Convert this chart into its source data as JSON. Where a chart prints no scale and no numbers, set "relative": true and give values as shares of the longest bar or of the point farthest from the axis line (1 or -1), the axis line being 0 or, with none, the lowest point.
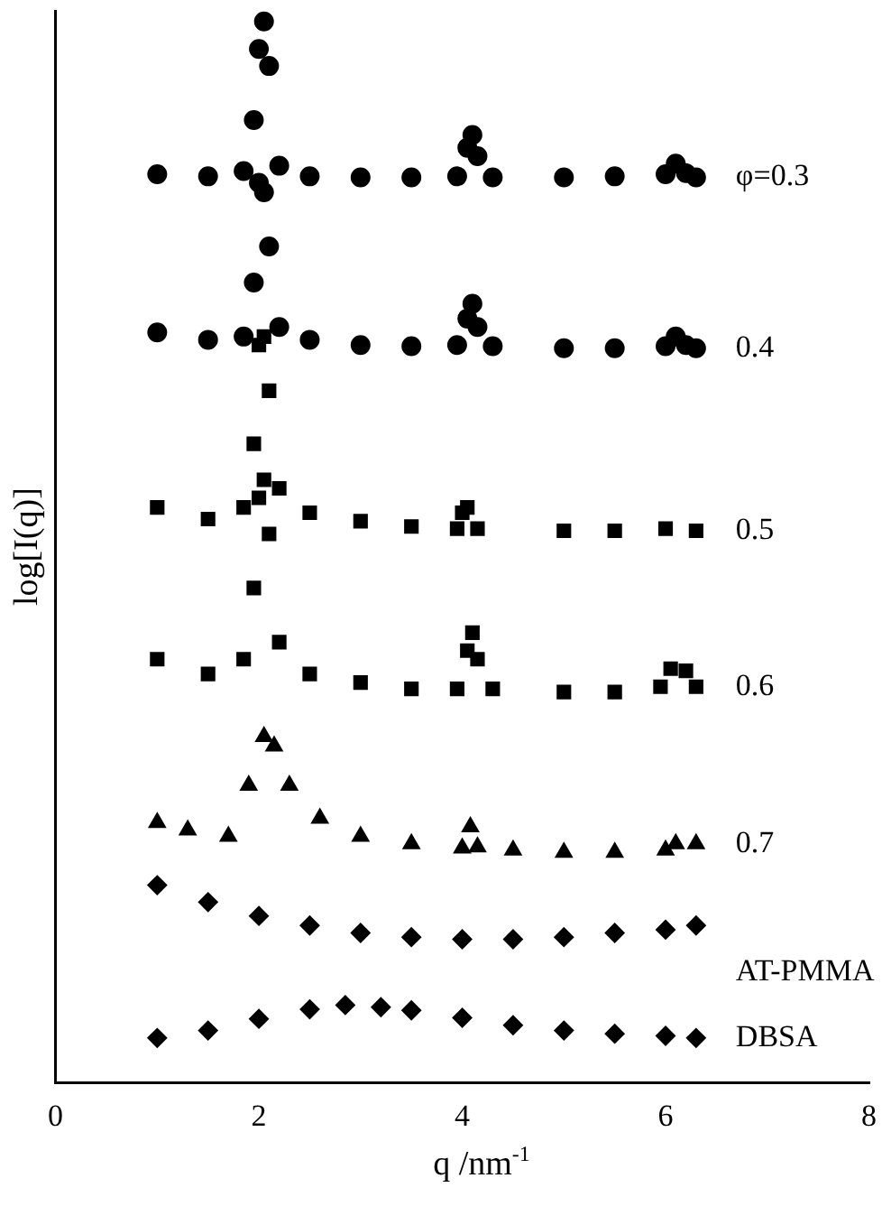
{
  "chart_data": {
    "type": "scatter",
    "relative": true,
    "xlabel": "q /nm$^{-1}$",
    "ylabel": "log[I(q)]",
    "xlim": [
      0,
      8
    ],
    "xticks": [
      0,
      2,
      4,
      6,
      8
    ],
    "grid": false,
    "legend": false,
    "series": [
      {
        "name": "φ=0.3",
        "color": "#000000",
        "marker": "circle",
        "x": [
          1,
          1.5,
          1.85,
          1.95,
          2.0,
          2.05,
          2.1,
          2.2,
          2.5,
          3,
          3.5,
          3.95,
          4.05,
          4.1,
          4.15,
          4.3,
          5,
          5.5,
          6.0,
          6.1,
          6.2,
          6.3
        ],
        "values": [
          0.856,
          0.854,
          0.859,
          0.907,
          0.974,
          1,
          0.958,
          0.864,
          0.854,
          0.853,
          0.853,
          0.854,
          0.881,
          0.893,
          0.873,
          0.853,
          0.853,
          0.854,
          0.856,
          0.866,
          0.857,
          0.853
        ]
      },
      {
        "name": "0.4",
        "color": "#000000",
        "marker": "circle",
        "x": [
          1,
          1.5,
          1.85,
          1.95,
          2.0,
          2.05,
          2.1,
          2.2,
          2.5,
          3,
          3.5,
          3.95,
          4.05,
          4.1,
          4.15,
          4.3,
          5,
          5.5,
          6.0,
          6.1,
          6.2,
          6.3
        ],
        "values": [
          0.707,
          0.7,
          0.703,
          0.754,
          0.848,
          0.839,
          0.788,
          0.712,
          0.7,
          0.695,
          0.694,
          0.695,
          0.72,
          0.734,
          0.712,
          0.694,
          0.692,
          0.692,
          0.694,
          0.703,
          0.695,
          0.692
        ]
      },
      {
        "name": "0.5",
        "color": "#000000",
        "marker": "square",
        "x": [
          1,
          1.5,
          1.85,
          1.95,
          2.0,
          2.05,
          2.1,
          2.2,
          2.5,
          3,
          3.5,
          3.95,
          4.0,
          4.05,
          4.15,
          5,
          5.5,
          6,
          6.3
        ],
        "values": [
          0.542,
          0.531,
          0.542,
          0.602,
          0.695,
          0.703,
          0.652,
          0.56,
          0.537,
          0.529,
          0.524,
          0.522,
          0.537,
          0.542,
          0.522,
          0.52,
          0.52,
          0.522,
          0.52
        ]
      },
      {
        "name": "0.6",
        "color": "#000000",
        "marker": "square",
        "x": [
          1,
          1.5,
          1.85,
          1.95,
          2.0,
          2.05,
          2.1,
          2.2,
          2.5,
          3,
          3.5,
          3.95,
          4.05,
          4.1,
          4.15,
          4.3,
          5,
          5.5,
          5.95,
          6.05,
          6.2,
          6.3
        ],
        "values": [
          0.399,
          0.385,
          0.399,
          0.466,
          0.551,
          0.568,
          0.517,
          0.415,
          0.385,
          0.377,
          0.371,
          0.371,
          0.407,
          0.424,
          0.399,
          0.371,
          0.368,
          0.368,
          0.373,
          0.39,
          0.388,
          0.373
        ]
      },
      {
        "name": "0.7",
        "color": "#000000",
        "marker": "triangle",
        "x": [
          1,
          1.3,
          1.7,
          1.9,
          2.05,
          2.15,
          2.3,
          2.6,
          3,
          3.5,
          4.0,
          4.08,
          4.15,
          4.5,
          5,
          5.5,
          6,
          6.1,
          6.3
        ],
        "values": [
          0.245,
          0.238,
          0.232,
          0.28,
          0.326,
          0.317,
          0.28,
          0.249,
          0.232,
          0.225,
          0.221,
          0.241,
          0.222,
          0.219,
          0.217,
          0.217,
          0.219,
          0.225,
          0.225
        ]
      },
      {
        "name": "AT-PMMA",
        "color": "#000000",
        "marker": "diamond",
        "x": [
          1,
          1.5,
          2,
          2.5,
          3,
          3.5,
          4,
          4.5,
          5,
          5.5,
          6,
          6.3
        ],
        "values": [
          0.186,
          0.17,
          0.157,
          0.148,
          0.141,
          0.137,
          0.135,
          0.135,
          0.137,
          0.141,
          0.144,
          0.148
        ]
      },
      {
        "name": "DBSA",
        "color": "#000000",
        "marker": "diamond",
        "x": [
          1,
          1.5,
          2,
          2.5,
          2.85,
          3.2,
          3.5,
          4,
          4.5,
          5,
          5.5,
          6,
          6.3
        ],
        "values": [
          0.042,
          0.049,
          0.06,
          0.069,
          0.073,
          0.071,
          0.068,
          0.061,
          0.054,
          0.049,
          0.046,
          0.044,
          0.042
        ]
      }
    ]
  }
}
